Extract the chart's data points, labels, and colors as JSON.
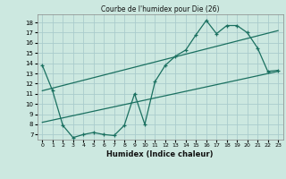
{
  "title": "Courbe de l'humidex pour Die (26)",
  "xlabel": "Humidex (Indice chaleur)",
  "bg_color": "#cce8e0",
  "grid_color": "#aacccc",
  "line_color": "#1a7060",
  "xlim": [
    -0.5,
    23.5
  ],
  "ylim": [
    6.5,
    18.8
  ],
  "xticks": [
    0,
    1,
    2,
    3,
    4,
    5,
    6,
    7,
    8,
    9,
    10,
    11,
    12,
    13,
    14,
    15,
    16,
    17,
    18,
    19,
    20,
    21,
    22,
    23
  ],
  "yticks": [
    7,
    8,
    9,
    10,
    11,
    12,
    13,
    14,
    15,
    16,
    17,
    18
  ],
  "line1_x": [
    0,
    1,
    2,
    3,
    4,
    5,
    6,
    7,
    8,
    9,
    10,
    11,
    12,
    13,
    14,
    15,
    16,
    17,
    18,
    19,
    20,
    21,
    22,
    23
  ],
  "line1_y": [
    13.8,
    11.3,
    7.9,
    6.7,
    7.0,
    7.2,
    7.0,
    6.9,
    7.9,
    11.0,
    8.0,
    12.2,
    13.8,
    14.7,
    15.3,
    16.8,
    18.2,
    16.9,
    17.7,
    17.7,
    17.0,
    15.5,
    13.2,
    13.3
  ],
  "line3_x": [
    0,
    23
  ],
  "line3_y": [
    8.2,
    13.2
  ],
  "line4_x": [
    0,
    23
  ],
  "line4_y": [
    11.3,
    17.2
  ]
}
